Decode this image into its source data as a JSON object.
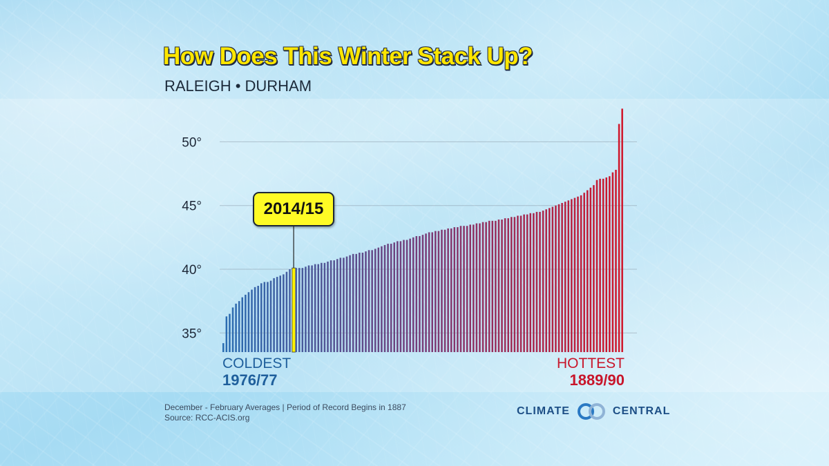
{
  "header": {
    "title": "How Does This Winter Stack Up?",
    "subtitle": "RALEIGH • DURHAM"
  },
  "footer": {
    "note": "December - February Averages | Period of Record Begins in 1887",
    "source": "Source: RCC-ACIS.org",
    "logo_left": "CLIMATE",
    "logo_right": "CENTRAL"
  },
  "colors": {
    "cold": "#2a6db2",
    "hot": "#d0152a",
    "highlight": "#fff200",
    "title": "#ffe600"
  },
  "chart_data": {
    "type": "bar",
    "title": "How Does This Winter Stack Up?",
    "subtitle": "RALEIGH • DURHAM",
    "ylabel": "",
    "ylim": [
      33.5,
      53
    ],
    "y_ticks": [
      35,
      40,
      45,
      50
    ],
    "y_tick_labels": [
      "35°",
      "40°",
      "45°",
      "50°"
    ],
    "grid": true,
    "sorted": "ascending",
    "left_annotation": {
      "label": "COLDEST",
      "year": "1976/77"
    },
    "right_annotation": {
      "label": "HOTTEST",
      "year": "1889/90"
    },
    "highlight": {
      "label": "2014/15",
      "index": 22,
      "value": 40.1
    },
    "values": [
      34.2,
      36.3,
      36.5,
      37.0,
      37.3,
      37.5,
      37.8,
      38.0,
      38.2,
      38.4,
      38.6,
      38.7,
      38.9,
      39.0,
      39.0,
      39.1,
      39.3,
      39.4,
      39.5,
      39.6,
      39.8,
      40.0,
      40.1,
      40.1,
      40.1,
      40.1,
      40.2,
      40.3,
      40.3,
      40.4,
      40.4,
      40.5,
      40.5,
      40.6,
      40.7,
      40.7,
      40.8,
      40.9,
      40.9,
      41.0,
      41.1,
      41.2,
      41.2,
      41.3,
      41.3,
      41.4,
      41.5,
      41.5,
      41.6,
      41.7,
      41.8,
      41.9,
      42.0,
      42.0,
      42.1,
      42.2,
      42.2,
      42.3,
      42.3,
      42.4,
      42.5,
      42.6,
      42.6,
      42.7,
      42.8,
      42.9,
      42.9,
      43.0,
      43.0,
      43.1,
      43.1,
      43.2,
      43.2,
      43.3,
      43.3,
      43.4,
      43.4,
      43.4,
      43.5,
      43.5,
      43.6,
      43.6,
      43.7,
      43.7,
      43.8,
      43.8,
      43.8,
      43.9,
      43.9,
      44.0,
      44.0,
      44.1,
      44.1,
      44.2,
      44.2,
      44.3,
      44.3,
      44.4,
      44.4,
      44.5,
      44.5,
      44.6,
      44.7,
      44.8,
      44.9,
      45.0,
      45.1,
      45.2,
      45.3,
      45.4,
      45.5,
      45.6,
      45.7,
      45.8,
      46.0,
      46.2,
      46.4,
      46.6,
      47.0,
      47.1,
      47.1,
      47.2,
      47.3,
      47.6,
      47.8,
      51.4,
      52.6
    ]
  }
}
